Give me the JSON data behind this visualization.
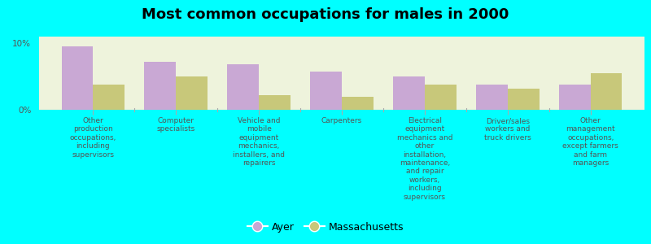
{
  "title": "Most common occupations for males in 2000",
  "categories": [
    "Other\nproduction\noccupations,\nincluding\nsupervisors",
    "Computer\nspecialists",
    "Vehicle and\nmobile\nequipment\nmechanics,\ninstallers, and\nrepairers",
    "Carpenters",
    "Electrical\nequipment\nmechanics and\nother\ninstallation,\nmaintenance,\nand repair\nworkers,\nincluding\nsupervisors",
    "Driver/sales\nworkers and\ntruck drivers",
    "Other\nmanagement\noccupations,\nexcept farmers\nand farm\nmanagers"
  ],
  "ayer_values": [
    9.5,
    7.2,
    6.8,
    5.8,
    5.0,
    3.8,
    3.8
  ],
  "mass_values": [
    3.8,
    5.0,
    2.2,
    2.0,
    3.8,
    3.2,
    5.5
  ],
  "ayer_color": "#c9a8d4",
  "mass_color": "#c8c87a",
  "background_color": "#00ffff",
  "plot_bg_color": "#eef3dc",
  "ylim_max": 11.0,
  "yticks": [
    0,
    10
  ],
  "ytick_labels": [
    "0%",
    "10%"
  ],
  "bar_width": 0.38,
  "legend_ayer": "Ayer",
  "legend_mass": "Massachusetts",
  "title_fontsize": 13
}
